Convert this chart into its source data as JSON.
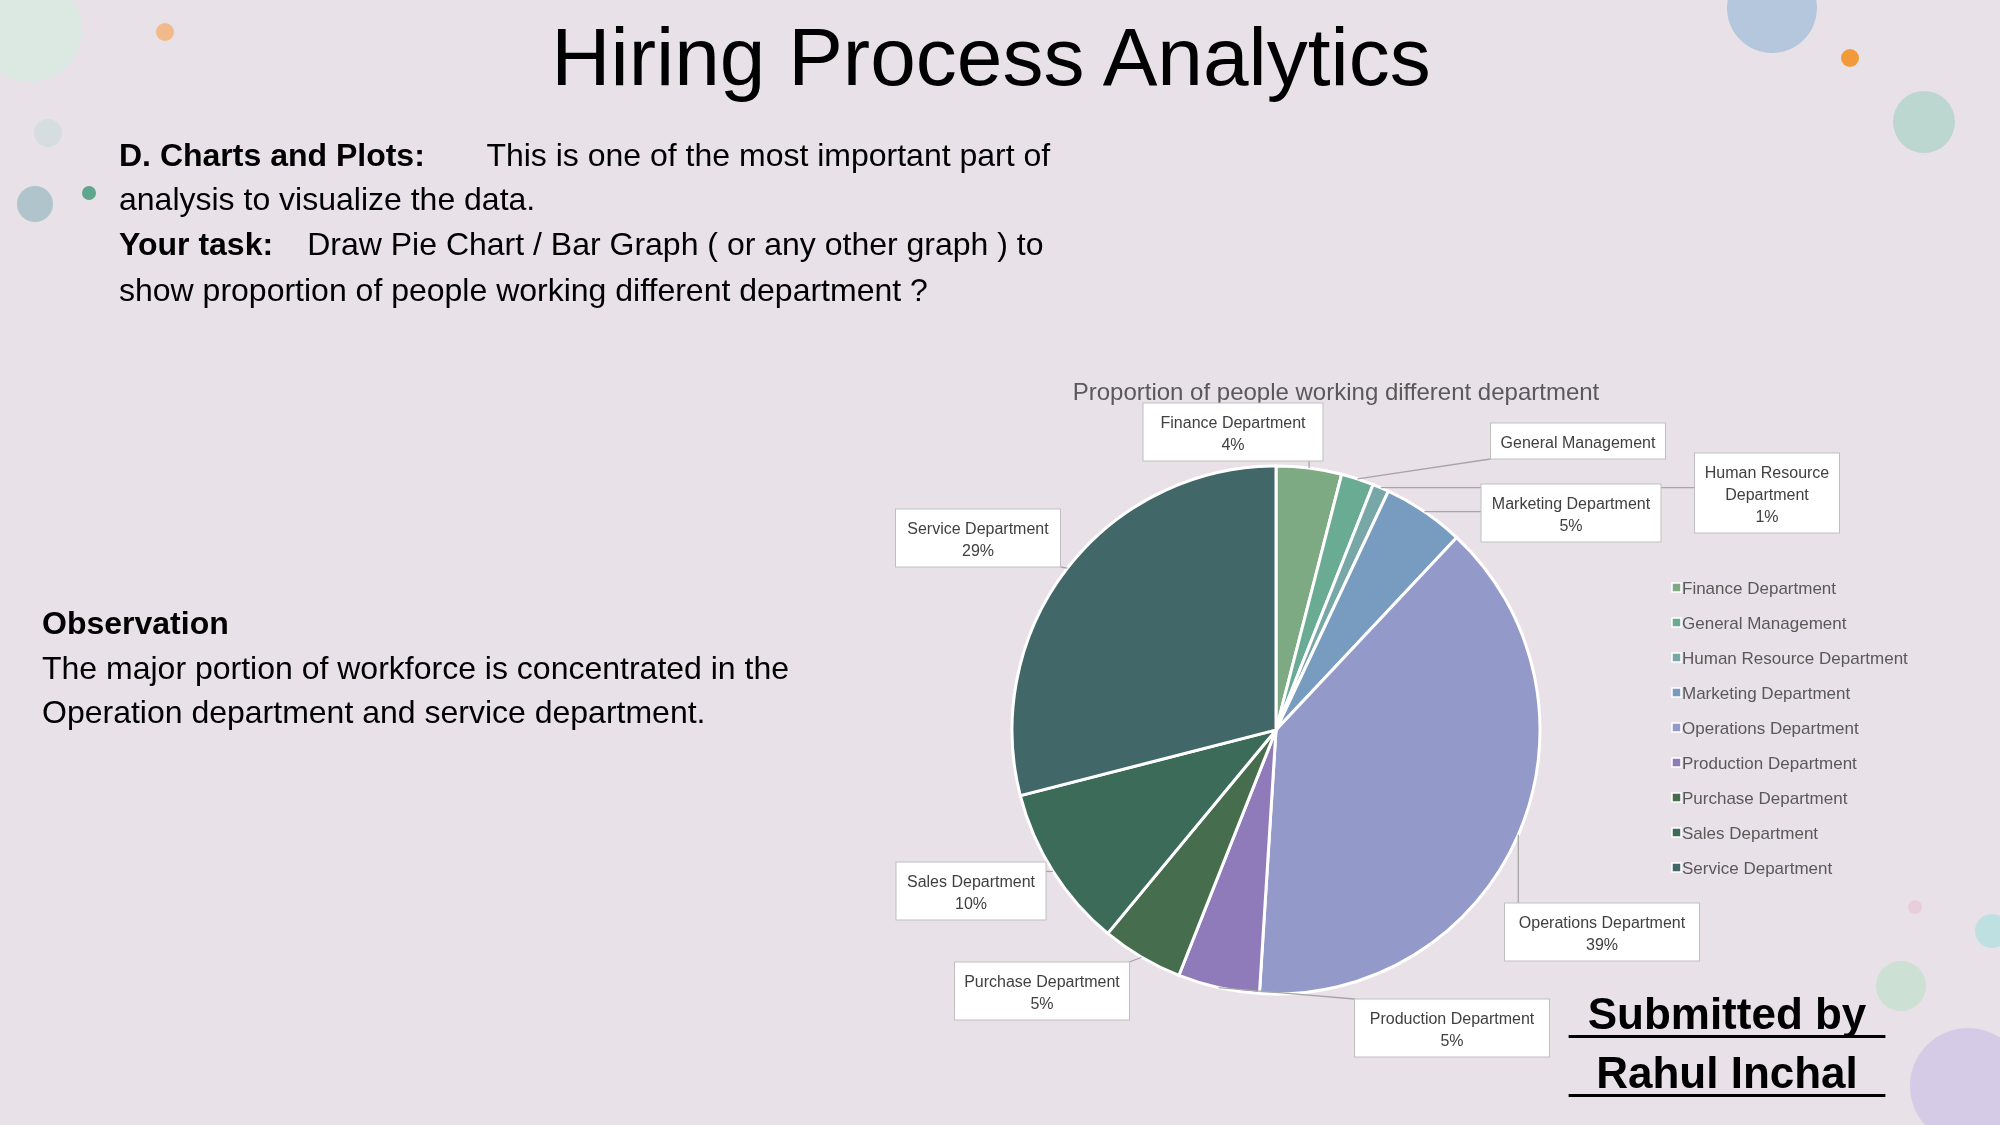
{
  "chart_data": {
    "type": "pie",
    "title": "Hiring Process Analytics",
    "subtitle": "Proportion of people working different department",
    "categories": [
      "Finance Department",
      "General Management",
      "Human Resource Department",
      "Marketing Department",
      "Operations Department",
      "Production Department",
      "Purchase Department",
      "Sales Department",
      "Service Department"
    ],
    "values": [
      4,
      2,
      1,
      5,
      39,
      5,
      5,
      10,
      29
    ],
    "value_labels": [
      "4%",
      null,
      "1%",
      "5%",
      "39%",
      "5%",
      "5%",
      "10%",
      "29%"
    ],
    "colors": [
      "#7daa82",
      "#6aab93",
      "#78a7a8",
      "#789cbf",
      "#9399c8",
      "#8f7aba",
      "#466d4e",
      "#3d6b5a",
      "#426768"
    ],
    "legend": "right",
    "annotations": [
      "D. Charts and Plots:",
      "This is one of the most important part of",
      "analysis to visualize the data.",
      "Your task:",
      "Draw Pie Chart / Bar Graph ( or any other graph ) to",
      "show proportion of people working different department ?",
      "Observation",
      "The major portion of workforce is concentrated in the",
      "Operation department and service department.",
      "Submitted by",
      "Rahul Inchal"
    ]
  }
}
